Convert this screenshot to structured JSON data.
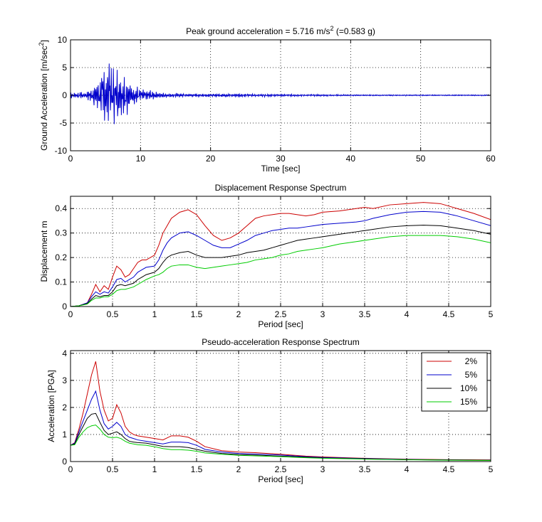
{
  "colors": {
    "background": "#ffffff",
    "axes": "#000000",
    "grid": "#000000",
    "accel_trace": "#0000cc",
    "damping_2": "#cc0000",
    "damping_5": "#0000cc",
    "damping_10": "#000000",
    "damping_15": "#00cc00"
  },
  "chart_data": [
    {
      "type": "line",
      "title": "Peak ground acceleration = 5.716 m/s",
      "title_sup": "2",
      "title_tail": " (=0.583 g)",
      "xlabel": "Time [sec]",
      "ylabel": "Ground Acceleration [m/sec",
      "ylabel_sup": "2",
      "ylabel_tail": "]",
      "xlim": [
        0,
        60
      ],
      "ylim": [
        -10,
        10
      ],
      "xticks": [
        0,
        10,
        20,
        30,
        40,
        50,
        60
      ],
      "yticks": [
        -10,
        -5,
        0,
        5,
        10
      ],
      "grid": true,
      "series": [
        {
          "color": "#0000cc",
          "envelope": {
            "t": [
              0,
              2,
              3,
              4,
              4.5,
              5,
              5.5,
              6,
              6.5,
              7,
              7.5,
              8,
              8.5,
              9,
              9.5,
              10,
              11,
              12,
              14,
              17,
              20,
              25,
              30,
              40,
              50,
              60
            ],
            "amp": [
              0.5,
              0.6,
              1.2,
              3.0,
              5.0,
              5.2,
              5.716,
              5.0,
              4.5,
              4.8,
              3.5,
              3.5,
              2.5,
              2.0,
              1.5,
              1.2,
              1.0,
              0.6,
              0.4,
              0.3,
              0.3,
              0.3,
              0.2,
              0.12,
              0.1,
              0.1
            ]
          },
          "peak": 5.716
        }
      ]
    },
    {
      "type": "line",
      "title": "Displacement Response Spectrum",
      "xlabel": "Period [sec]",
      "ylabel": "Displacement m",
      "xlim": [
        0,
        5
      ],
      "ylim": [
        0,
        0.45
      ],
      "xticks": [
        0,
        0.5,
        1,
        1.5,
        2,
        2.5,
        3,
        3.5,
        4,
        4.5,
        5
      ],
      "yticks": [
        0,
        0.1,
        0.2,
        0.3,
        0.4
      ],
      "grid": true,
      "x": [
        0,
        0.1,
        0.2,
        0.25,
        0.3,
        0.35,
        0.4,
        0.45,
        0.5,
        0.55,
        0.6,
        0.65,
        0.7,
        0.75,
        0.8,
        0.85,
        0.9,
        1.0,
        1.05,
        1.1,
        1.15,
        1.2,
        1.3,
        1.4,
        1.5,
        1.6,
        1.7,
        1.8,
        1.9,
        2.0,
        2.1,
        2.2,
        2.3,
        2.4,
        2.5,
        2.6,
        2.7,
        2.8,
        2.9,
        3.0,
        3.2,
        3.4,
        3.5,
        3.6,
        3.8,
        4.0,
        4.2,
        4.4,
        4.6,
        4.8,
        5.0
      ],
      "series": [
        {
          "name": "2%",
          "color": "#cc0000",
          "values": [
            0,
            0.003,
            0.015,
            0.05,
            0.09,
            0.06,
            0.085,
            0.07,
            0.12,
            0.165,
            0.15,
            0.12,
            0.13,
            0.155,
            0.18,
            0.19,
            0.19,
            0.21,
            0.25,
            0.3,
            0.33,
            0.36,
            0.385,
            0.395,
            0.375,
            0.33,
            0.29,
            0.27,
            0.28,
            0.3,
            0.33,
            0.36,
            0.37,
            0.375,
            0.38,
            0.38,
            0.375,
            0.37,
            0.375,
            0.385,
            0.39,
            0.4,
            0.405,
            0.4,
            0.415,
            0.42,
            0.425,
            0.42,
            0.4,
            0.38,
            0.355
          ]
        },
        {
          "name": "5%",
          "color": "#0000cc",
          "values": [
            0,
            0.003,
            0.015,
            0.04,
            0.06,
            0.05,
            0.06,
            0.055,
            0.08,
            0.11,
            0.115,
            0.1,
            0.11,
            0.12,
            0.14,
            0.15,
            0.16,
            0.165,
            0.19,
            0.23,
            0.26,
            0.28,
            0.3,
            0.305,
            0.29,
            0.27,
            0.25,
            0.24,
            0.24,
            0.255,
            0.27,
            0.29,
            0.3,
            0.31,
            0.315,
            0.32,
            0.32,
            0.325,
            0.33,
            0.335,
            0.34,
            0.345,
            0.35,
            0.36,
            0.375,
            0.385,
            0.388,
            0.385,
            0.37,
            0.35,
            0.33
          ]
        },
        {
          "name": "10%",
          "color": "#000000",
          "values": [
            0,
            0.003,
            0.012,
            0.03,
            0.045,
            0.04,
            0.045,
            0.045,
            0.06,
            0.085,
            0.09,
            0.085,
            0.09,
            0.095,
            0.11,
            0.12,
            0.13,
            0.14,
            0.155,
            0.18,
            0.2,
            0.21,
            0.22,
            0.225,
            0.21,
            0.2,
            0.2,
            0.2,
            0.205,
            0.21,
            0.22,
            0.225,
            0.23,
            0.24,
            0.25,
            0.26,
            0.27,
            0.275,
            0.28,
            0.285,
            0.295,
            0.305,
            0.31,
            0.315,
            0.325,
            0.33,
            0.332,
            0.33,
            0.32,
            0.31,
            0.295
          ]
        },
        {
          "name": "15%",
          "color": "#00cc00",
          "values": [
            0,
            0.003,
            0.01,
            0.025,
            0.035,
            0.035,
            0.04,
            0.04,
            0.05,
            0.065,
            0.07,
            0.07,
            0.075,
            0.08,
            0.09,
            0.1,
            0.11,
            0.125,
            0.13,
            0.14,
            0.155,
            0.165,
            0.17,
            0.17,
            0.16,
            0.155,
            0.16,
            0.165,
            0.17,
            0.175,
            0.18,
            0.19,
            0.195,
            0.2,
            0.21,
            0.215,
            0.225,
            0.23,
            0.235,
            0.24,
            0.255,
            0.265,
            0.27,
            0.275,
            0.285,
            0.29,
            0.29,
            0.29,
            0.285,
            0.275,
            0.26
          ]
        }
      ]
    },
    {
      "type": "line",
      "title": "Pseudo-acceleration Response Spectrum",
      "xlabel": "Period [sec]",
      "ylabel": "Acceleration [PGA]",
      "xlim": [
        0,
        5
      ],
      "ylim": [
        0,
        4.1
      ],
      "xticks": [
        0,
        0.5,
        1,
        1.5,
        2,
        2.5,
        3,
        3.5,
        4,
        4.5,
        5
      ],
      "yticks": [
        0,
        1,
        2,
        3,
        4
      ],
      "grid": true,
      "legend": "top-right",
      "x": [
        0,
        0.05,
        0.1,
        0.15,
        0.2,
        0.25,
        0.3,
        0.35,
        0.4,
        0.45,
        0.5,
        0.55,
        0.6,
        0.65,
        0.7,
        0.75,
        0.8,
        0.9,
        1.0,
        1.1,
        1.2,
        1.3,
        1.4,
        1.5,
        1.6,
        1.8,
        2.0,
        2.2,
        2.5,
        2.8,
        3.0,
        3.5,
        4.0,
        4.5,
        5.0
      ],
      "series": [
        {
          "name": "2%",
          "color": "#cc0000",
          "values": [
            0.6,
            0.7,
            1.2,
            1.8,
            2.5,
            3.2,
            3.7,
            2.6,
            1.9,
            1.5,
            1.6,
            2.1,
            1.8,
            1.3,
            1.1,
            1.0,
            0.95,
            0.9,
            0.85,
            0.8,
            0.95,
            0.95,
            0.9,
            0.75,
            0.55,
            0.4,
            0.35,
            0.33,
            0.27,
            0.2,
            0.17,
            0.12,
            0.09,
            0.07,
            0.06
          ]
        },
        {
          "name": "5%",
          "color": "#0000cc",
          "values": [
            0.6,
            0.68,
            1.1,
            1.5,
            1.9,
            2.3,
            2.6,
            1.9,
            1.4,
            1.2,
            1.3,
            1.45,
            1.3,
            1.0,
            0.9,
            0.85,
            0.8,
            0.75,
            0.7,
            0.65,
            0.72,
            0.72,
            0.7,
            0.6,
            0.45,
            0.35,
            0.3,
            0.28,
            0.24,
            0.18,
            0.15,
            0.11,
            0.08,
            0.06,
            0.05
          ]
        },
        {
          "name": "10%",
          "color": "#000000",
          "values": [
            0.6,
            0.65,
            1.0,
            1.3,
            1.6,
            1.75,
            1.78,
            1.45,
            1.15,
            1.0,
            1.05,
            1.1,
            1.0,
            0.85,
            0.75,
            0.72,
            0.7,
            0.68,
            0.62,
            0.56,
            0.55,
            0.55,
            0.52,
            0.45,
            0.38,
            0.3,
            0.26,
            0.24,
            0.2,
            0.16,
            0.13,
            0.1,
            0.07,
            0.06,
            0.05
          ]
        },
        {
          "name": "15%",
          "color": "#00cc00",
          "values": [
            0.6,
            0.62,
            0.9,
            1.1,
            1.25,
            1.32,
            1.35,
            1.2,
            1.0,
            0.9,
            0.88,
            0.9,
            0.85,
            0.75,
            0.68,
            0.65,
            0.62,
            0.6,
            0.55,
            0.48,
            0.44,
            0.44,
            0.42,
            0.38,
            0.32,
            0.27,
            0.23,
            0.21,
            0.18,
            0.14,
            0.12,
            0.09,
            0.07,
            0.05,
            0.04
          ]
        }
      ]
    }
  ]
}
